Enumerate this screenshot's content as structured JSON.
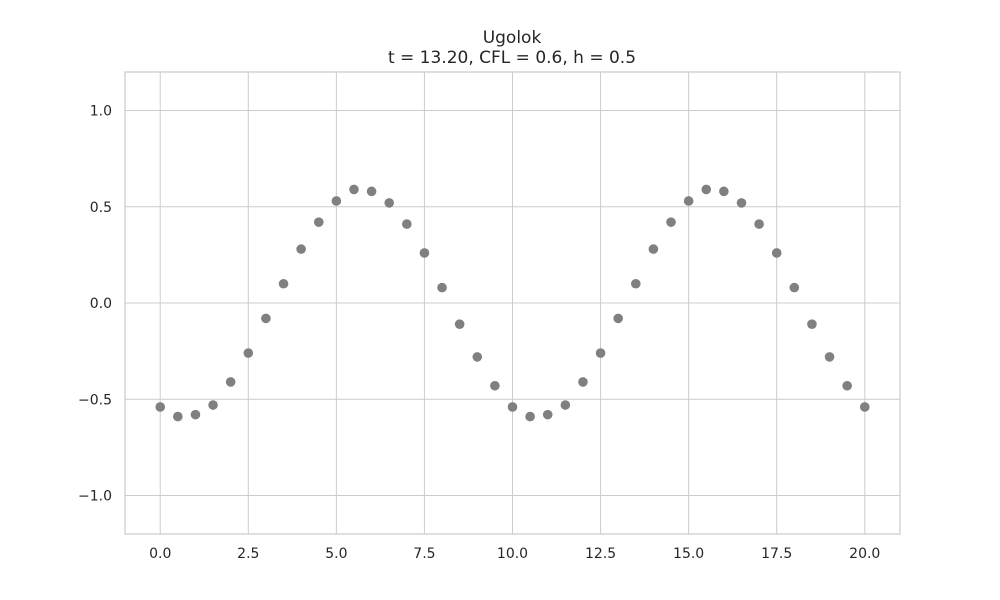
{
  "chart_data": {
    "type": "scatter",
    "title": "Ugolok",
    "subtitle": "t = 13.20, CFL = 0.6, h = 0.5",
    "xlabel": "",
    "ylabel": "",
    "xlim": [
      -1.0,
      21.0
    ],
    "ylim": [
      -1.2,
      1.2
    ],
    "grid": true,
    "marker_color": "#808080",
    "grid_color": "#cccccc",
    "xticks": [
      0.0,
      2.5,
      5.0,
      7.5,
      10.0,
      12.5,
      15.0,
      17.5,
      20.0
    ],
    "xtick_labels": [
      "0.0",
      "2.5",
      "5.0",
      "7.5",
      "10.0",
      "12.5",
      "15.0",
      "17.5",
      "20.0"
    ],
    "yticks": [
      1.0,
      0.5,
      0.0,
      -0.5,
      -1.0
    ],
    "ytick_labels": [
      "1.0",
      "0.5",
      "0.0",
      "−0.5",
      "−1.0"
    ],
    "series": [
      {
        "x": [
          0.0,
          0.5,
          1.0,
          1.5,
          2.0,
          2.5,
          3.0,
          3.5,
          4.0,
          4.5,
          5.0,
          5.5,
          6.0,
          6.5,
          7.0,
          7.5,
          8.0,
          8.5,
          9.0,
          9.5,
          10.0,
          10.5,
          11.0,
          11.5,
          12.0,
          12.5,
          13.0,
          13.5,
          14.0,
          14.5,
          15.0,
          15.5,
          16.0,
          16.5,
          17.0,
          17.5,
          18.0,
          18.5,
          19.0,
          19.5,
          20.0
        ],
        "y": [
          -0.54,
          -0.59,
          -0.58,
          -0.53,
          -0.41,
          -0.26,
          -0.08,
          0.1,
          0.28,
          0.42,
          0.53,
          0.59,
          0.58,
          0.52,
          0.41,
          0.26,
          0.08,
          -0.11,
          -0.28,
          -0.43,
          -0.54,
          -0.59,
          -0.58,
          -0.53,
          -0.41,
          -0.26,
          -0.08,
          0.1,
          0.28,
          0.42,
          0.53,
          0.59,
          0.58,
          0.52,
          0.41,
          0.26,
          0.08,
          -0.11,
          -0.28,
          -0.43,
          -0.54
        ]
      }
    ]
  }
}
